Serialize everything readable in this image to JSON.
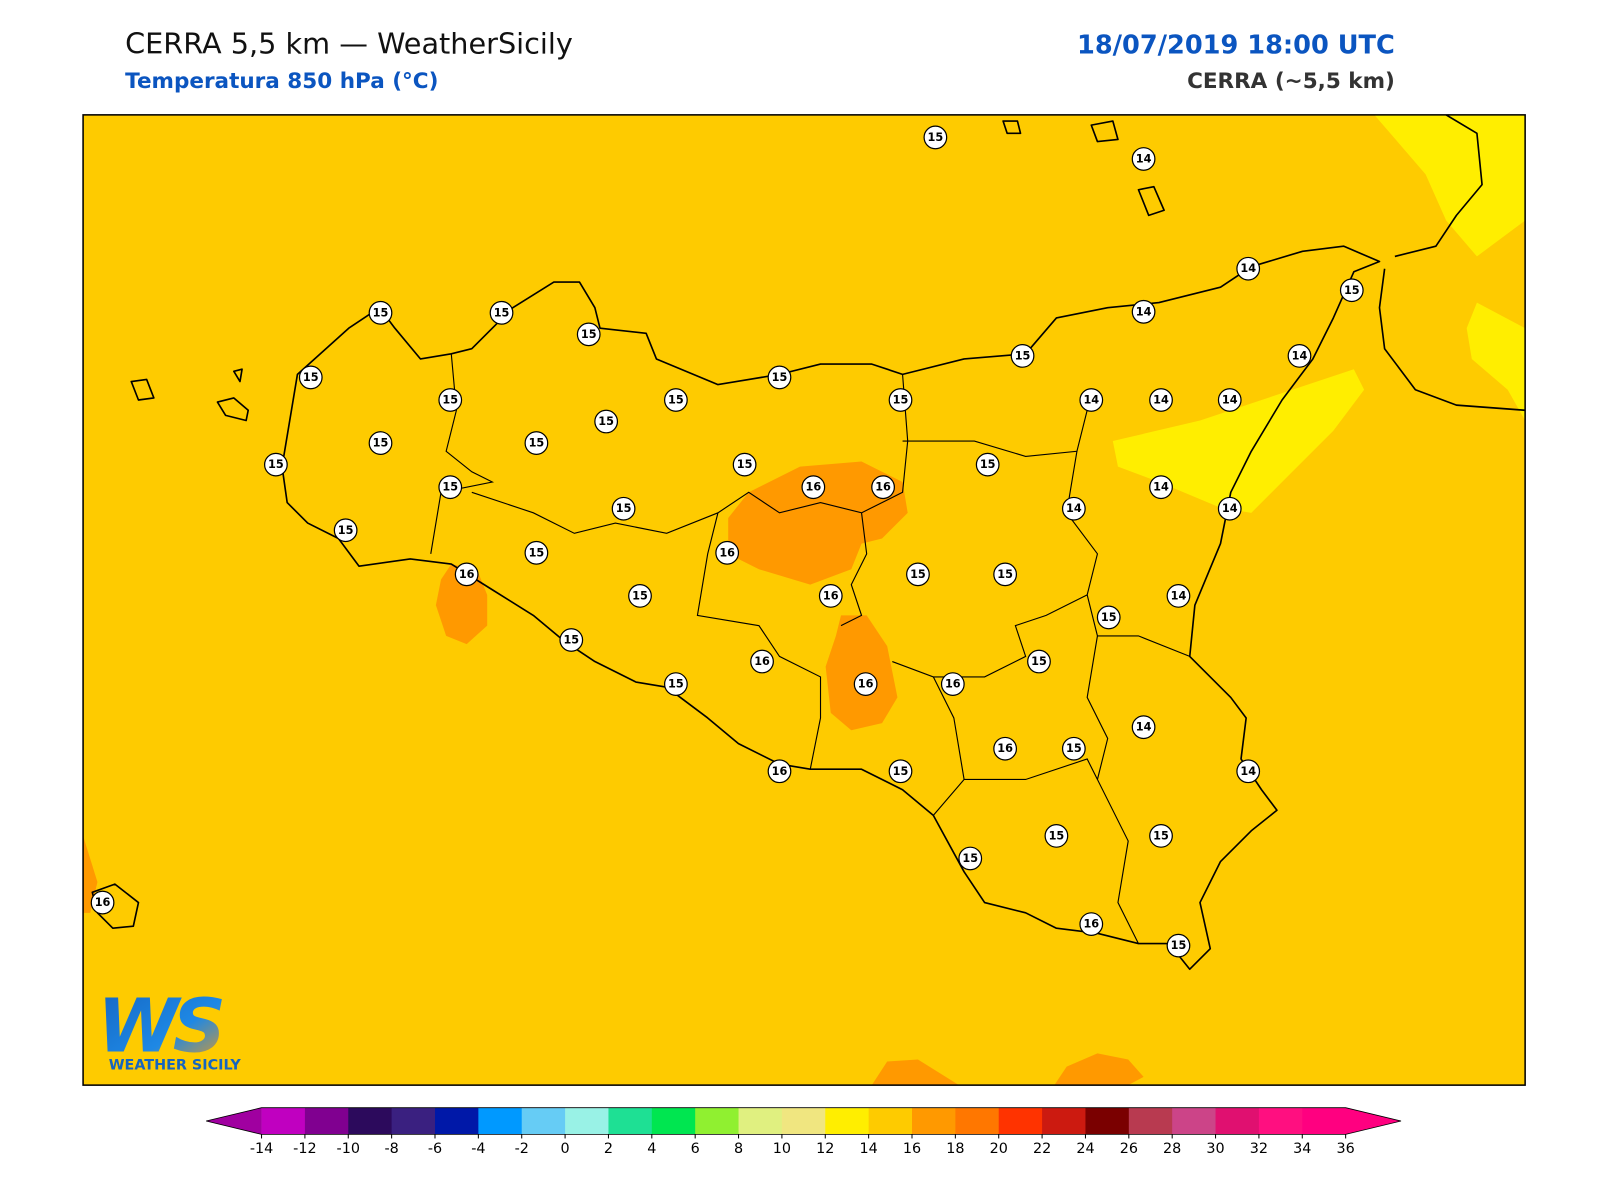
{
  "header": {
    "title": "CERRA 5,5 km — WeatherSicily",
    "subtitle": "Temperatura 850 hPa (°C)",
    "datetime": "18/07/2019 18:00 UTC",
    "model": "CERRA (~5,5 km)"
  },
  "map": {
    "background_color": "#fecb00",
    "station_values": [
      15,
      14,
      14,
      15,
      15,
      15,
      15,
      14,
      15,
      14,
      15,
      15,
      15,
      15,
      15,
      14,
      14,
      14,
      15,
      15,
      15,
      15,
      15,
      15,
      15,
      16,
      16,
      14,
      15,
      14,
      14,
      15,
      15,
      16,
      16,
      15,
      15,
      15,
      16,
      14,
      15,
      15,
      16,
      15,
      15,
      16,
      16,
      14,
      16,
      15,
      16,
      15,
      14,
      15,
      15,
      15,
      16,
      16,
      15
    ]
  },
  "colorbar": {
    "ticks": [
      -14,
      -12,
      -10,
      -8,
      -6,
      -4,
      -2,
      0,
      2,
      4,
      6,
      8,
      10,
      12,
      14,
      16,
      18,
      20,
      22,
      24,
      26,
      28,
      30,
      32,
      34,
      36
    ],
    "colors": [
      "#c000c0",
      "#800090",
      "#2c0a5c",
      "#3a2080",
      "#0018a8",
      "#0099ff",
      "#66ccf5",
      "#99f2e6",
      "#1ee094",
      "#00e650",
      "#90f030",
      "#e0f080",
      "#f0e680",
      "#ffee00",
      "#fecb00",
      "#ff9900",
      "#ff7700",
      "#ff3300",
      "#cc1a10",
      "#7a0000",
      "#b83a50",
      "#cc4488",
      "#e01070",
      "#ff0f80",
      "#ff0080"
    ],
    "under_color": "#a000a0",
    "over_color": "#ff0080"
  },
  "logo": {
    "mark": "WS",
    "text": "WEATHER SICILY"
  }
}
